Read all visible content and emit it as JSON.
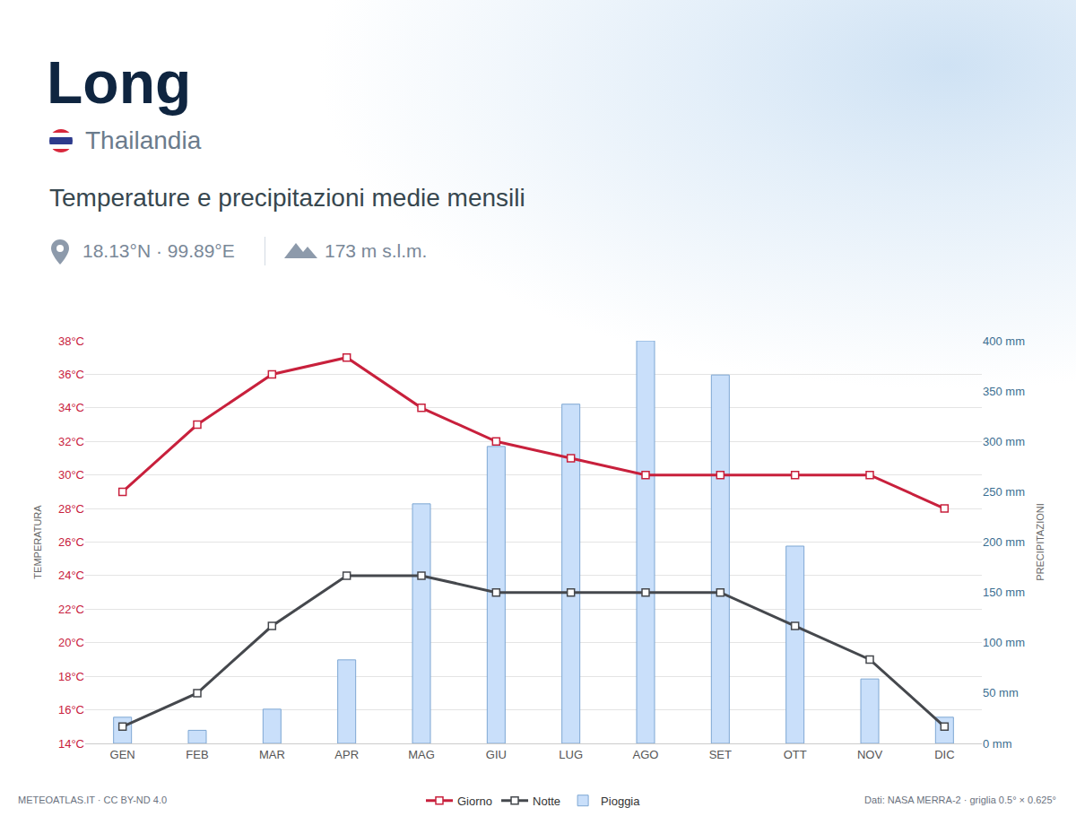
{
  "chart_data": {
    "type": "line",
    "title": "Long",
    "subtitle": "Thailandia",
    "caption": "Temperature e precipitazioni medie mensili",
    "coordinates": "18.13°N · 99.89°E",
    "elevation": "173 m s.l.m.",
    "footer_left": "METEOATLAS.IT · CC BY-ND 4.0",
    "footer_right": "Dati: NASA MERRA-2 · griglia 0.5° × 0.625°",
    "ylabel": "TEMPERATURA",
    "y2label": "PRECIPITAZIONI",
    "categories": [
      "GEN",
      "FEB",
      "MAR",
      "APR",
      "MAG",
      "GIU",
      "LUG",
      "AGO",
      "SET",
      "OTT",
      "NOV",
      "DIC"
    ],
    "series": [
      {
        "name": "Pioggia",
        "type": "bar",
        "axis": "y2",
        "color": "#c9dffa",
        "values": [
          26,
          13,
          34,
          83,
          238,
          295,
          337,
          400,
          366,
          196,
          64,
          26
        ]
      },
      {
        "name": "Giorno",
        "type": "line",
        "color": "#c8203c",
        "marker": "square",
        "line_style": "solid",
        "values": [
          29,
          33,
          36,
          37,
          34,
          32,
          31,
          30,
          30,
          30,
          30,
          28
        ]
      },
      {
        "name": "Notte",
        "type": "line",
        "color": "#45484d",
        "marker": "square",
        "line_style": "solid",
        "values": [
          15,
          17,
          21,
          24,
          24,
          23,
          23,
          23,
          23,
          21,
          19,
          15
        ]
      }
    ],
    "ylim": [
      14,
      38
    ],
    "yticks": [
      {
        "value": 14,
        "label": "14°C"
      },
      {
        "value": 16,
        "label": "16°C"
      },
      {
        "value": 18,
        "label": "18°C"
      },
      {
        "value": 20,
        "label": "20°C"
      },
      {
        "value": 22,
        "label": "22°C"
      },
      {
        "value": 24,
        "label": "24°C"
      },
      {
        "value": 26,
        "label": "26°C"
      },
      {
        "value": 28,
        "label": "28°C"
      },
      {
        "value": 30,
        "label": "30°C"
      },
      {
        "value": 32,
        "label": "32°C"
      },
      {
        "value": 34,
        "label": "34°C"
      },
      {
        "value": 36,
        "label": "36°C"
      },
      {
        "value": 38,
        "label": "38°C"
      }
    ],
    "y2lim": [
      0,
      400
    ],
    "y2ticks": [
      {
        "value": 0,
        "label": "0 mm"
      },
      {
        "value": 50,
        "label": "50 mm"
      },
      {
        "value": 100,
        "label": "100 mm"
      },
      {
        "value": 150,
        "label": "150 mm"
      },
      {
        "value": 200,
        "label": "200 mm"
      },
      {
        "value": 250,
        "label": "250 mm"
      },
      {
        "value": 300,
        "label": "300 mm"
      },
      {
        "value": 350,
        "label": "350 mm"
      },
      {
        "value": 400,
        "label": "400 mm"
      }
    ],
    "grid": true,
    "legend": "bottom"
  }
}
